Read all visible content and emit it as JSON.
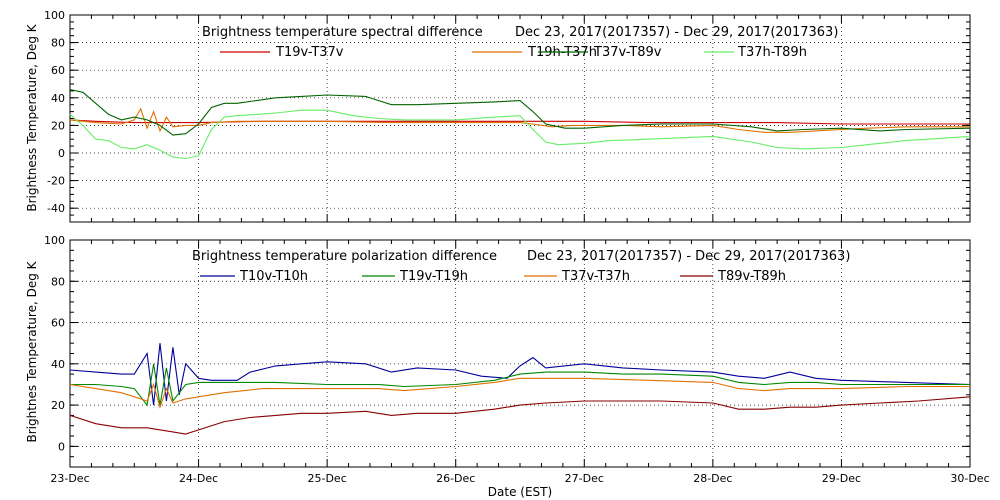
{
  "chart_data": [
    {
      "type": "line",
      "title": "Brightness temperature spectral difference",
      "date_range": "Dec 23, 2017(2017357) - Dec 29, 2017(2017363)",
      "ylabel": "Brightness Temperature, Deg K",
      "ylim": [
        -50,
        100
      ],
      "yticks": [
        -40,
        -20,
        0,
        20,
        40,
        60,
        80,
        100
      ],
      "xlim": [
        0,
        7
      ],
      "grid": true,
      "legend_position": "top",
      "series": [
        {
          "name": "T19v-T37v",
          "color": "#cc0000",
          "points": [
            [
              0,
              24
            ],
            [
              0.2,
              23
            ],
            [
              0.5,
              22
            ],
            [
              0.8,
              22
            ],
            [
              1,
              22
            ],
            [
              1.5,
              23
            ],
            [
              2,
              23
            ],
            [
              2.5,
              23
            ],
            [
              3,
              23
            ],
            [
              3.5,
              23
            ],
            [
              4,
              23
            ],
            [
              4.5,
              22
            ],
            [
              5,
              22
            ],
            [
              5.5,
              22
            ],
            [
              6,
              21
            ],
            [
              6.5,
              21
            ],
            [
              7,
              21
            ]
          ]
        },
        {
          "name": "T19h-T37h",
          "color": "#e07000",
          "points": [
            [
              0,
              24
            ],
            [
              0.2,
              22
            ],
            [
              0.4,
              21
            ],
            [
              0.5,
              24
            ],
            [
              0.55,
              32
            ],
            [
              0.6,
              18
            ],
            [
              0.65,
              30
            ],
            [
              0.7,
              16
            ],
            [
              0.75,
              26
            ],
            [
              0.8,
              19
            ],
            [
              0.9,
              20
            ],
            [
              1,
              20
            ],
            [
              1.1,
              22
            ],
            [
              1.3,
              23
            ],
            [
              1.6,
              23
            ],
            [
              2,
              23
            ],
            [
              2.5,
              22
            ],
            [
              3,
              22
            ],
            [
              3.5,
              22
            ],
            [
              3.6,
              21
            ],
            [
              3.75,
              19
            ],
            [
              3.9,
              20
            ],
            [
              4,
              20
            ],
            [
              4.3,
              20
            ],
            [
              4.6,
              19
            ],
            [
              5,
              20
            ],
            [
              5.2,
              17
            ],
            [
              5.4,
              15
            ],
            [
              5.6,
              15
            ],
            [
              5.8,
              16
            ],
            [
              6,
              17
            ],
            [
              6.2,
              18
            ],
            [
              6.5,
              19
            ],
            [
              7,
              19
            ]
          ]
        },
        {
          "name": "T37v-T89v",
          "color": "#006400",
          "points": [
            [
              0,
              46
            ],
            [
              0.1,
              44
            ],
            [
              0.2,
              36
            ],
            [
              0.3,
              28
            ],
            [
              0.4,
              24
            ],
            [
              0.5,
              26
            ],
            [
              0.6,
              24
            ],
            [
              0.7,
              20
            ],
            [
              0.8,
              13
            ],
            [
              0.9,
              14
            ],
            [
              1,
              21
            ],
            [
              1.1,
              33
            ],
            [
              1.2,
              36
            ],
            [
              1.3,
              36
            ],
            [
              1.6,
              40
            ],
            [
              1.8,
              41
            ],
            [
              2,
              42
            ],
            [
              2.3,
              41
            ],
            [
              2.5,
              35
            ],
            [
              2.7,
              35
            ],
            [
              3,
              36
            ],
            [
              3.3,
              37
            ],
            [
              3.5,
              38
            ],
            [
              3.6,
              30
            ],
            [
              3.7,
              21
            ],
            [
              3.85,
              18
            ],
            [
              4,
              18
            ],
            [
              4.3,
              20
            ],
            [
              4.6,
              21
            ],
            [
              5,
              21
            ],
            [
              5.3,
              19
            ],
            [
              5.5,
              16
            ],
            [
              5.7,
              17
            ],
            [
              6,
              18
            ],
            [
              6.3,
              16
            ],
            [
              6.5,
              17
            ],
            [
              7,
              18
            ]
          ]
        },
        {
          "name": "T37h-T89h",
          "color": "#66ee66",
          "points": [
            [
              0,
              28
            ],
            [
              0.1,
              20
            ],
            [
              0.2,
              10
            ],
            [
              0.3,
              9
            ],
            [
              0.4,
              4
            ],
            [
              0.5,
              3
            ],
            [
              0.6,
              6
            ],
            [
              0.7,
              2
            ],
            [
              0.8,
              -3
            ],
            [
              0.9,
              -4
            ],
            [
              1,
              -2
            ],
            [
              1.1,
              17
            ],
            [
              1.2,
              26
            ],
            [
              1.3,
              27
            ],
            [
              1.6,
              29
            ],
            [
              1.8,
              31
            ],
            [
              2,
              31
            ],
            [
              2.2,
              27
            ],
            [
              2.4,
              25
            ],
            [
              2.6,
              24
            ],
            [
              3,
              24
            ],
            [
              3.3,
              26
            ],
            [
              3.5,
              27
            ],
            [
              3.6,
              17
            ],
            [
              3.7,
              8
            ],
            [
              3.8,
              6
            ],
            [
              4,
              7
            ],
            [
              4.2,
              9
            ],
            [
              4.5,
              10
            ],
            [
              5,
              12
            ],
            [
              5.3,
              8
            ],
            [
              5.5,
              4
            ],
            [
              5.7,
              3
            ],
            [
              6,
              4
            ],
            [
              6.2,
              6
            ],
            [
              6.5,
              9
            ],
            [
              7,
              12
            ]
          ]
        }
      ]
    },
    {
      "type": "line",
      "title": "Brightness temperature polarization difference",
      "date_range": "Dec 23, 2017(2017357) - Dec 29, 2017(2017363)",
      "ylabel": "Brightnes Temperature, Deg K",
      "xlabel": "Date (EST)",
      "ylim": [
        -10,
        100
      ],
      "yticks": [
        0,
        20,
        40,
        60,
        80,
        100
      ],
      "xlim": [
        0,
        7
      ],
      "xticks": [
        "23-Dec",
        "24-Dec",
        "25-Dec",
        "26-Dec",
        "27-Dec",
        "28-Dec",
        "29-Dec",
        "30-Dec"
      ],
      "grid": true,
      "legend_position": "top",
      "series": [
        {
          "name": "T10v-T10h",
          "color": "#000099",
          "points": [
            [
              0,
              37
            ],
            [
              0.2,
              36
            ],
            [
              0.4,
              35
            ],
            [
              0.5,
              35
            ],
            [
              0.6,
              45
            ],
            [
              0.65,
              20
            ],
            [
              0.7,
              50
            ],
            [
              0.75,
              22
            ],
            [
              0.8,
              48
            ],
            [
              0.85,
              25
            ],
            [
              0.9,
              40
            ],
            [
              1,
              33
            ],
            [
              1.1,
              32
            ],
            [
              1.3,
              32
            ],
            [
              1.4,
              36
            ],
            [
              1.6,
              39
            ],
            [
              1.8,
              40
            ],
            [
              2,
              41
            ],
            [
              2.3,
              40
            ],
            [
              2.5,
              36
            ],
            [
              2.7,
              38
            ],
            [
              3,
              37
            ],
            [
              3.2,
              34
            ],
            [
              3.4,
              33
            ],
            [
              3.5,
              39
            ],
            [
              3.6,
              43
            ],
            [
              3.7,
              38
            ],
            [
              4,
              40
            ],
            [
              4.3,
              38
            ],
            [
              4.6,
              37
            ],
            [
              5,
              36
            ],
            [
              5.2,
              34
            ],
            [
              5.4,
              33
            ],
            [
              5.6,
              36
            ],
            [
              5.8,
              33
            ],
            [
              6,
              32
            ],
            [
              6.5,
              31
            ],
            [
              7,
              30
            ]
          ]
        },
        {
          "name": "T19v-T19h",
          "color": "#008800",
          "points": [
            [
              0,
              30
            ],
            [
              0.2,
              30
            ],
            [
              0.4,
              29
            ],
            [
              0.5,
              28
            ],
            [
              0.6,
              20
            ],
            [
              0.65,
              40
            ],
            [
              0.7,
              20
            ],
            [
              0.75,
              38
            ],
            [
              0.8,
              22
            ],
            [
              0.9,
              30
            ],
            [
              1,
              31
            ],
            [
              1.3,
              31
            ],
            [
              1.6,
              31
            ],
            [
              2,
              30
            ],
            [
              2.4,
              30
            ],
            [
              2.6,
              29
            ],
            [
              3,
              30
            ],
            [
              3.3,
              32
            ],
            [
              3.5,
              35
            ],
            [
              3.7,
              36
            ],
            [
              4,
              36
            ],
            [
              4.3,
              35
            ],
            [
              4.6,
              35
            ],
            [
              5,
              34
            ],
            [
              5.2,
              31
            ],
            [
              5.4,
              30
            ],
            [
              5.6,
              31
            ],
            [
              5.8,
              31
            ],
            [
              6,
              30
            ],
            [
              6.5,
              30
            ],
            [
              7,
              30
            ]
          ]
        },
        {
          "name": "T37v-T37h",
          "color": "#e07000",
          "points": [
            [
              0,
              30
            ],
            [
              0.2,
              28
            ],
            [
              0.4,
              26
            ],
            [
              0.5,
              24
            ],
            [
              0.6,
              22
            ],
            [
              0.65,
              30
            ],
            [
              0.7,
              19
            ],
            [
              0.75,
              28
            ],
            [
              0.8,
              21
            ],
            [
              0.9,
              23
            ],
            [
              1,
              24
            ],
            [
              1.2,
              26
            ],
            [
              1.5,
              28
            ],
            [
              2,
              28
            ],
            [
              2.4,
              28
            ],
            [
              2.6,
              27
            ],
            [
              3,
              29
            ],
            [
              3.3,
              31
            ],
            [
              3.5,
              33
            ],
            [
              3.7,
              33
            ],
            [
              4,
              33
            ],
            [
              4.5,
              32
            ],
            [
              5,
              31
            ],
            [
              5.2,
              28
            ],
            [
              5.4,
              27
            ],
            [
              5.6,
              28
            ],
            [
              5.8,
              28
            ],
            [
              6,
              28
            ],
            [
              6.5,
              29
            ],
            [
              7,
              29
            ]
          ]
        },
        {
          "name": "T89v-T89h",
          "color": "#880000",
          "points": [
            [
              0,
              15
            ],
            [
              0.2,
              11
            ],
            [
              0.4,
              9
            ],
            [
              0.6,
              9
            ],
            [
              0.8,
              7
            ],
            [
              0.9,
              6
            ],
            [
              1,
              8
            ],
            [
              1.2,
              12
            ],
            [
              1.4,
              14
            ],
            [
              1.6,
              15
            ],
            [
              1.8,
              16
            ],
            [
              2,
              16
            ],
            [
              2.3,
              17
            ],
            [
              2.5,
              15
            ],
            [
              2.7,
              16
            ],
            [
              3,
              16
            ],
            [
              3.3,
              18
            ],
            [
              3.5,
              20
            ],
            [
              3.7,
              21
            ],
            [
              4,
              22
            ],
            [
              4.3,
              22
            ],
            [
              4.6,
              22
            ],
            [
              5,
              21
            ],
            [
              5.2,
              18
            ],
            [
              5.4,
              18
            ],
            [
              5.6,
              19
            ],
            [
              5.8,
              19
            ],
            [
              6,
              20
            ],
            [
              6.3,
              21
            ],
            [
              6.6,
              22
            ],
            [
              7,
              24
            ]
          ]
        }
      ]
    }
  ]
}
